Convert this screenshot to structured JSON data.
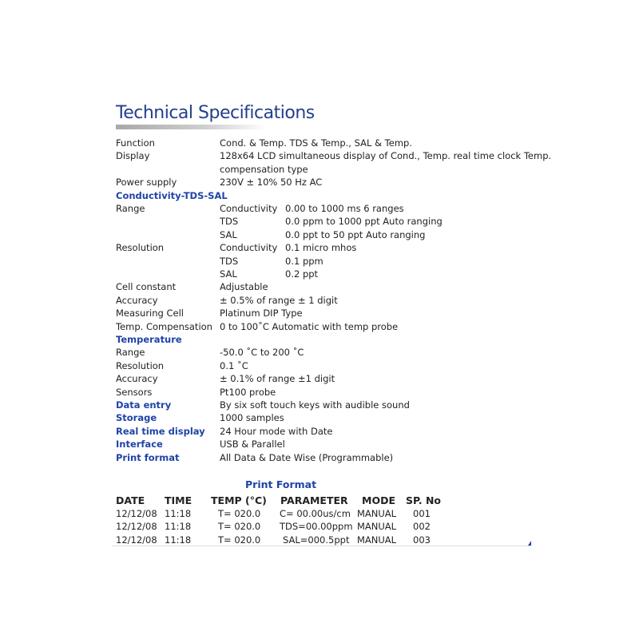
{
  "title": "Technical Specifications",
  "specs": [
    {
      "label": "Function",
      "value": "Cond. & Temp. TDS & Temp., SAL & Temp."
    },
    {
      "label": "Display",
      "value": "128x64 LCD simultaneous display of Cond., Temp. real time clock Temp."
    },
    {
      "label": "",
      "value": "compensation type"
    },
    {
      "label": "Power supply",
      "value": "230V ± 10% 50 Hz AC"
    },
    {
      "heading": "Conductivity-TDS-SAL"
    },
    {
      "label": "Range",
      "sub": "Conductivity",
      "value": "0.00 to 1000 ms 6 ranges"
    },
    {
      "label": "",
      "sub": "TDS",
      "value": "0.0 ppm to 1000 ppt Auto ranging"
    },
    {
      "label": "",
      "sub": "SAL",
      "value": "0.0 ppt to 50 ppt Auto ranging"
    },
    {
      "label": "Resolution",
      "sub": "Conductivity",
      "value": "0.1 micro mhos"
    },
    {
      "label": "",
      "sub": "TDS",
      "value": "0.1 ppm"
    },
    {
      "label": "",
      "sub": "SAL",
      "value": "0.2 ppt"
    },
    {
      "label": "Cell constant",
      "value": " Adjustable"
    },
    {
      "label": "Accuracy",
      "value": "± 0.5% of range ± 1 digit"
    },
    {
      "label": "Measuring Cell",
      "value": "Platinum DIP Type"
    },
    {
      "label": "Temp. Compensation",
      "value": "0 to 100˚C Automatic with temp probe"
    },
    {
      "heading": "Temperature"
    },
    {
      "label": "Range",
      "value": "-50.0 ˚C to 200 ˚C"
    },
    {
      "label": "Resolution",
      "value": "0.1 ˚C"
    },
    {
      "label": "Accuracy",
      "value": "± 0.1% of range ±1 digit"
    },
    {
      "label": "Sensors",
      "value": "Pt100 probe"
    },
    {
      "hlabel": "Data entry",
      "value": "By six soft touch keys with audible sound"
    },
    {
      "hlabel": "Storage",
      "value": "1000 samples"
    },
    {
      "hlabel": "Real time display",
      "value": "24 Hour mode with Date"
    },
    {
      "hlabel": "Interface",
      "value": "USB & Parallel"
    },
    {
      "hlabel": "Print format",
      "value": "All Data & Date Wise (Programmable)"
    }
  ],
  "print_format": {
    "title": "Print Format",
    "headers": [
      "DATE",
      "TIME",
      "TEMP (°C)",
      "PARAMETER",
      "MODE",
      "SP. No"
    ],
    "rows": [
      [
        "12/12/08",
        "11:18",
        "T= 020.0",
        "C= 00.00us/cm",
        "MANUAL",
        "001"
      ],
      [
        "12/12/08",
        "11:18",
        "T= 020.0",
        "TDS=00.00ppm",
        "MANUAL",
        "002"
      ],
      [
        "12/12/08",
        "11:18",
        "T= 020.0",
        "SAL=000.5ppt",
        "MANUAL",
        "003"
      ]
    ]
  },
  "colors": {
    "heading": "#1f44a8",
    "title": "#233f8c"
  }
}
